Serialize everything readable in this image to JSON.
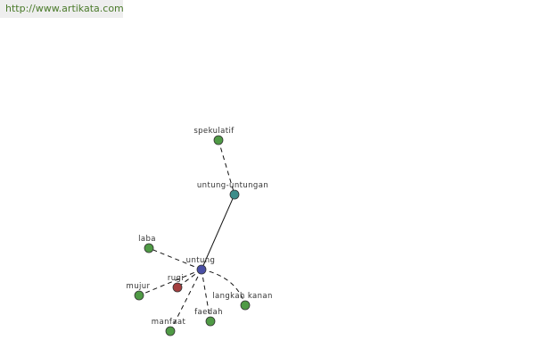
{
  "header": {
    "url": "http://www.artikata.com"
  },
  "nodes": [
    {
      "label": "spekulatif"
    },
    {
      "label": "untung-untungan"
    },
    {
      "label": "laba"
    },
    {
      "label": "untung"
    },
    {
      "label": "rugi"
    },
    {
      "label": "mujur"
    },
    {
      "label": "langkah kanan"
    },
    {
      "label": "faedah"
    },
    {
      "label": "manfaat"
    }
  ]
}
